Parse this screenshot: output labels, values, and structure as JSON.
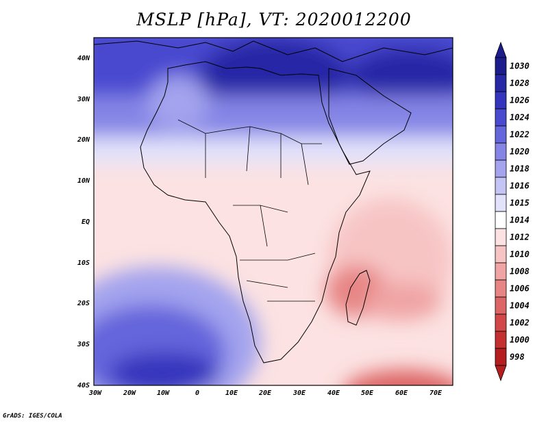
{
  "title": "MSLP [hPa], VT: 2020012200",
  "credit": "GrADS: IGES/COLA",
  "axes": {
    "lat_labels": [
      "40N",
      "30N",
      "20N",
      "10N",
      "EQ",
      "10S",
      "20S",
      "30S",
      "40S"
    ],
    "lon_labels": [
      "30W",
      "20W",
      "10W",
      "0",
      "10E",
      "20E",
      "30E",
      "40E",
      "50E",
      "60E",
      "70E"
    ]
  },
  "colorbar": {
    "levels": [
      "1030",
      "1028",
      "1026",
      "1024",
      "1022",
      "1020",
      "1018",
      "1016",
      "1015",
      "1014",
      "1012",
      "1010",
      "1008",
      "1006",
      "1004",
      "1002",
      "1000",
      "998"
    ],
    "colors": [
      "#1c1c8c",
      "#2828a6",
      "#3434bd",
      "#4a4ad0",
      "#6565dc",
      "#8585e6",
      "#a3a3ee",
      "#c4c4f5",
      "#e2e2fb",
      "#ffffff",
      "#fce2e2",
      "#f7c4c4",
      "#f0a4a4",
      "#e78585",
      "#dd6565",
      "#d24848",
      "#c43030",
      "#b41e1e"
    ]
  },
  "map": {
    "region": "Africa",
    "field_regions": [
      {
        "name": "north-high",
        "level": "1026",
        "color": "#3434bd"
      },
      {
        "name": "sahara-band",
        "level": "1020",
        "color": "#8585e6"
      },
      {
        "name": "equatorial-trough",
        "level": "1012",
        "color": "#fce2e2"
      },
      {
        "name": "south-atlantic-high",
        "level": "1024",
        "color": "#4a4ad0"
      },
      {
        "name": "mozambique-low",
        "level": "1006",
        "color": "#e78585"
      },
      {
        "name": "southern-ocean-low",
        "level": "1002",
        "color": "#d24848"
      }
    ]
  }
}
